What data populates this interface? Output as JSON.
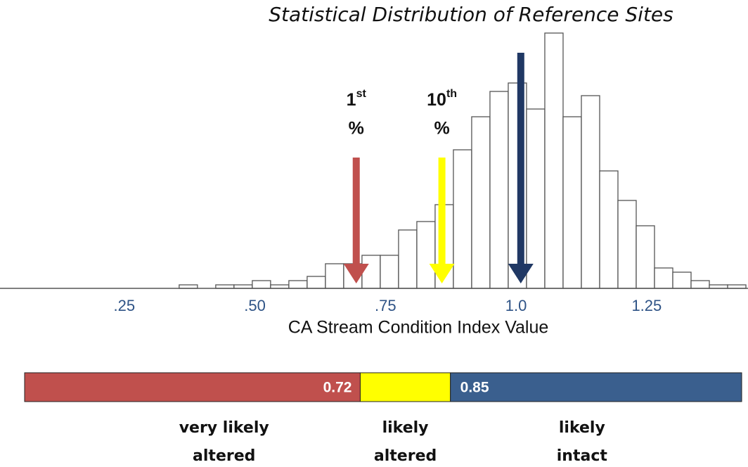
{
  "chart_data": {
    "type": "histogram",
    "title": "Statistical Distribution of Reference Sites",
    "x_label": "CA Stream Condition Index Value",
    "bins": [
      0.355,
      0.39,
      0.425,
      0.46,
      0.495,
      0.53,
      0.565,
      0.6,
      0.635,
      0.67,
      0.705,
      0.74,
      0.775,
      0.81,
      0.845,
      0.88,
      0.915,
      0.95,
      0.985,
      1.02,
      1.055,
      1.09,
      1.125,
      1.16,
      1.195,
      1.23,
      1.265,
      1.3,
      1.335,
      1.37,
      1.405,
      1.44
    ],
    "values": [
      5,
      0,
      5,
      5,
      11,
      5,
      11,
      17,
      35,
      35,
      47,
      47,
      83,
      95,
      119,
      197,
      244,
      280,
      292,
      255,
      363,
      244,
      274,
      167,
      125,
      89,
      29,
      23,
      11,
      5,
      5
    ],
    "color": "#ffffff",
    "edge_color": "#555555",
    "xlim": [
      0.012,
      1.444
    ],
    "ylim": [
      0,
      363
    ],
    "xticks": [
      {
        "value": 0.25,
        "label": ".25"
      },
      {
        "value": 0.5,
        "label": ".50"
      },
      {
        "value": 0.75,
        "label": ".75"
      },
      {
        "value": 1.0,
        "label": "1.0"
      },
      {
        "value": 1.25,
        "label": "1.25"
      }
    ],
    "markers": [
      {
        "value": 0.694,
        "color": "#c0504d",
        "label": "1",
        "suffix": "st",
        "unit": "%"
      },
      {
        "value": 0.858,
        "color": "#ffff00",
        "label": "10",
        "suffix": "th",
        "unit": "%"
      },
      {
        "value": 1.009,
        "color": "#203864"
      }
    ],
    "condition_bar": {
      "xlim": [
        0.236,
        1.27
      ],
      "thresholds": [
        0.72,
        0.85
      ],
      "segments": [
        {
          "label_lines": [
            "very likely",
            "altered"
          ],
          "color": "#c0504d"
        },
        {
          "label_lines": [
            "likely",
            "altered"
          ],
          "color": "#ffff00"
        },
        {
          "label_lines": [
            "likely",
            "intact"
          ],
          "color": "#3a5f8e"
        }
      ]
    }
  }
}
